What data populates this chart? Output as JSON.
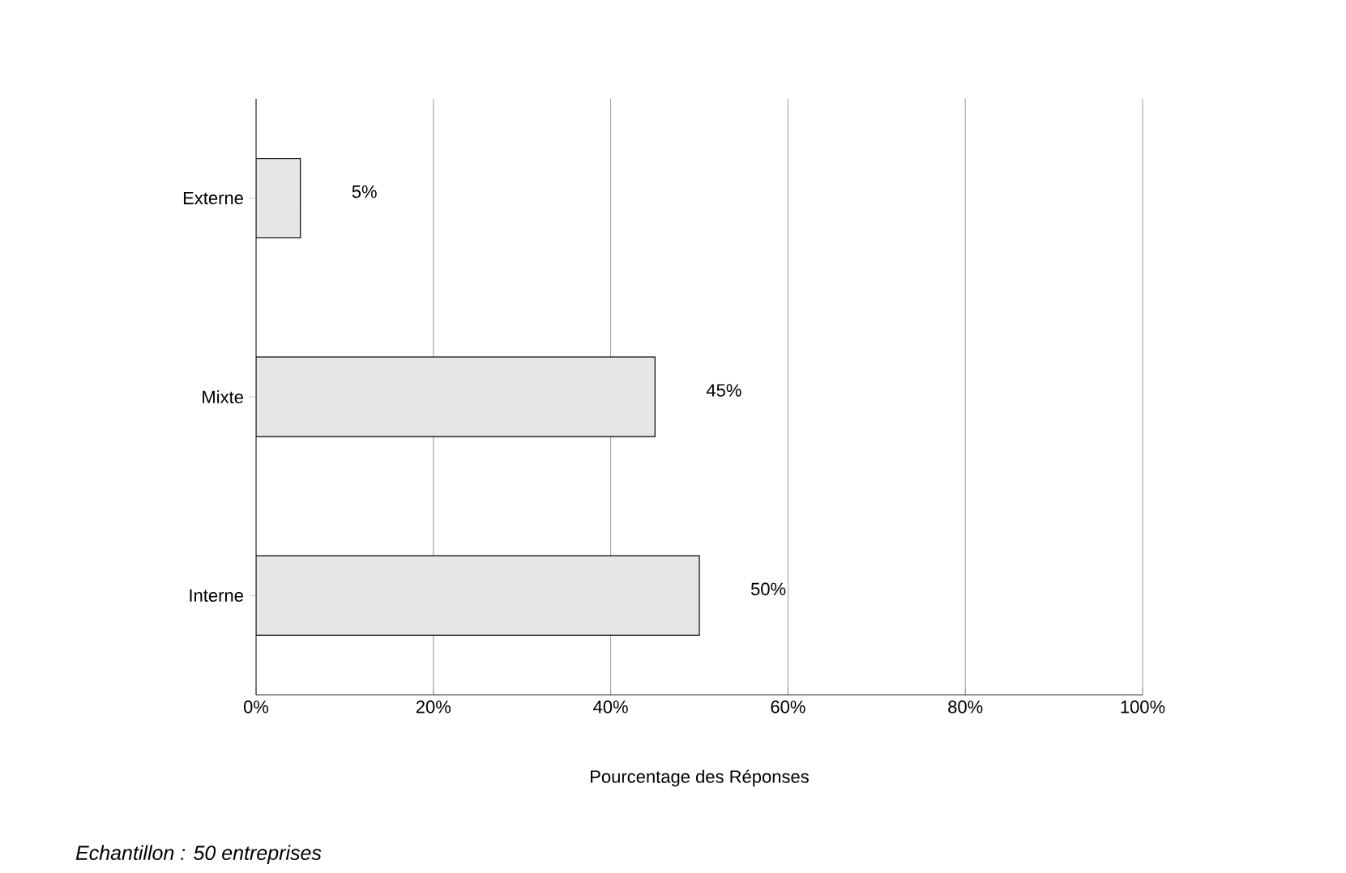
{
  "chart_data": {
    "type": "bar",
    "orientation": "horizontal",
    "categories": [
      "Externe",
      "Mixte",
      "Interne"
    ],
    "values": [
      5,
      45,
      50
    ],
    "value_labels": [
      "5%",
      "45%",
      "50%"
    ],
    "color": "#e6e6e6",
    "xlim": [
      0,
      100
    ],
    "xticks": [
      {
        "value": 0,
        "label": "0%"
      },
      {
        "value": 20,
        "label": "20%"
      },
      {
        "value": 40,
        "label": "40%"
      },
      {
        "value": 60,
        "label": "60%"
      },
      {
        "value": 80,
        "label": "80%"
      },
      {
        "value": 100,
        "label": "100%"
      }
    ],
    "xlabel": "Pourcentage des Réponses",
    "grid": "x",
    "annotations": [
      "Echantillon : 50 entreprises"
    ]
  }
}
